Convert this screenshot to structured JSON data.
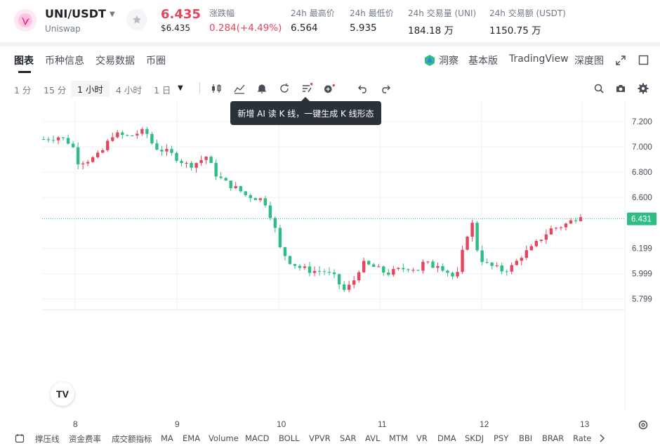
{
  "header": {
    "pair": "UNI/USDT",
    "subtitle": "Uniswap",
    "price": "6.435",
    "price_usd": "$6.435",
    "stats": [
      {
        "label": "涨跌幅",
        "value": "0.284(+4.49%)",
        "color": "red"
      },
      {
        "label": "24h 最高价",
        "value": "6.564"
      },
      {
        "label": "24h 最低价",
        "value": "5.935"
      },
      {
        "label": "24h 交易量 (UNI)",
        "value": "184.18 万"
      },
      {
        "label": "24h 交易额 (USDT)",
        "value": "1150.75 万"
      }
    ]
  },
  "tabs": [
    "图表",
    "币种信息",
    "交易数据",
    "币圈"
  ],
  "right_options": {
    "insight": "洞察",
    "basic": "基本版",
    "tradingview": "TradingView",
    "depth": "深度图"
  },
  "timeframes": [
    "1 分",
    "15 分",
    "1 小时",
    "4 小时",
    "1 日"
  ],
  "active_timeframe": "1 小时",
  "tooltip": "新增 AI 读 K 线，一键生成 K 线形态",
  "chart_data": {
    "type": "candlestick",
    "y_ticks": [
      "7.200",
      "7.000",
      "6.800",
      "6.600",
      "6.199",
      "5.999",
      "5.799"
    ],
    "x_ticks": [
      "8",
      "9",
      "10",
      "11",
      "12",
      "13"
    ],
    "last_price_label": "6.431",
    "ylim": [
      5.72,
      7.36
    ],
    "up_color": "#2ebd85",
    "down_color": "#e5455e"
  },
  "indicators": [
    "撑压线",
    "资金费率",
    "成交额指标",
    "MA",
    "EMA",
    "Volume",
    "MACD",
    "BOLL",
    "VPVR",
    "SAR",
    "AVL",
    "MTM",
    "VR",
    "DMA",
    "SKDJ",
    "PSY",
    "BBI",
    "BRAR",
    "Rate"
  ],
  "colors": {
    "accent_red": "#e5455e",
    "accent_green": "#2ebd85"
  }
}
